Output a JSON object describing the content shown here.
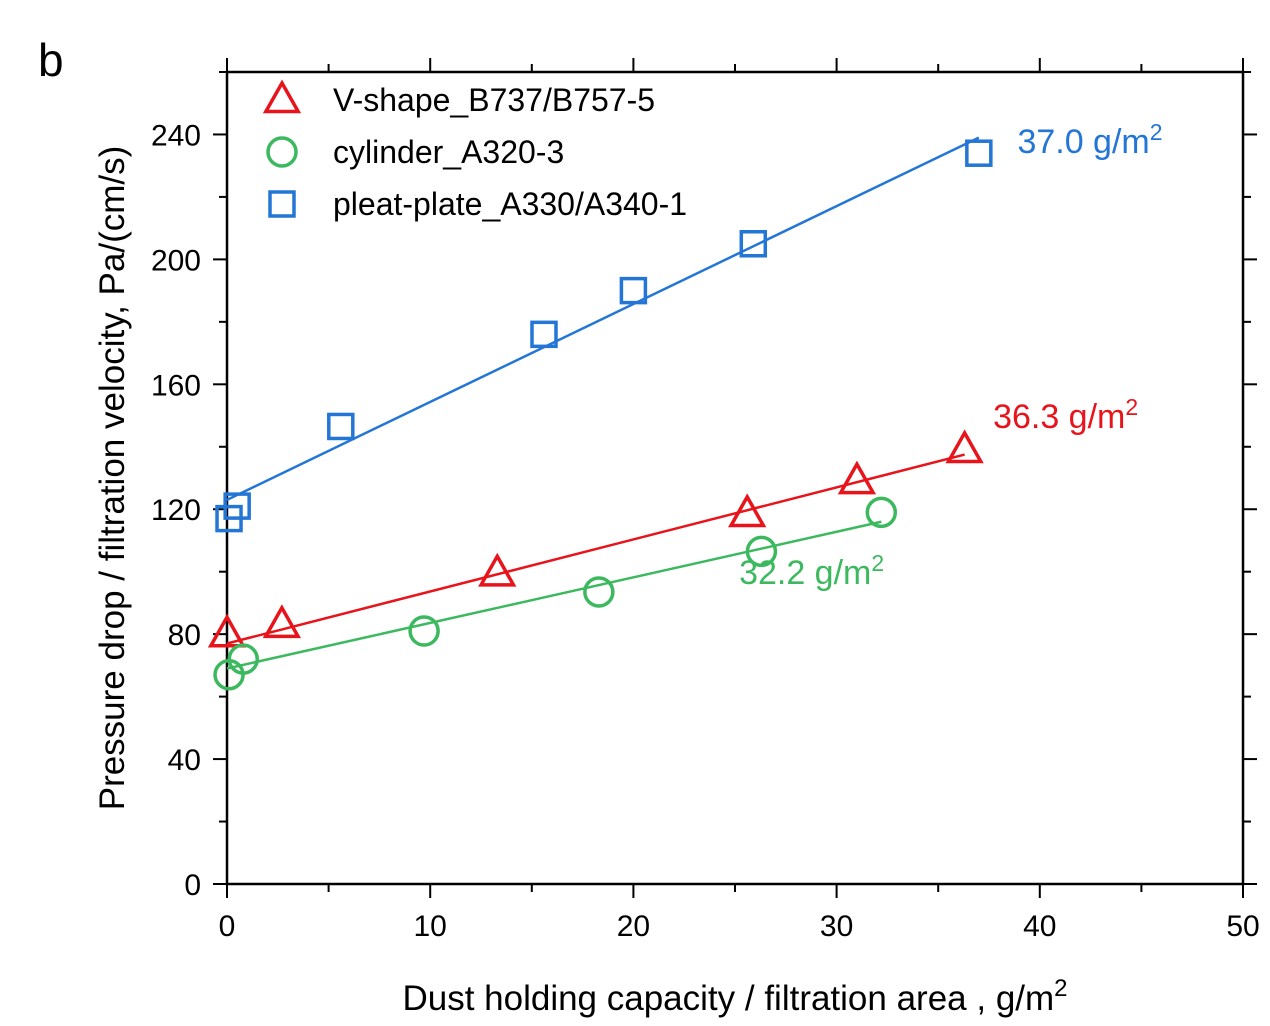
{
  "panel_label": "b",
  "chart_data": {
    "type": "scatter",
    "title": "",
    "xlabel": "Dust holding capacity / filtration area , g/m",
    "xlabel_sup": "2",
    "ylabel": "Pressure drop / filtration velocity, Pa/(cm/s)",
    "xlim": [
      0,
      50
    ],
    "ylim": [
      0,
      260
    ],
    "x_ticks": [
      0,
      10,
      20,
      30,
      40,
      50
    ],
    "y_ticks": [
      0,
      40,
      80,
      120,
      160,
      200,
      240
    ],
    "x_tick_labels": [
      "0",
      "10",
      "20",
      "30",
      "40",
      "50"
    ],
    "y_tick_labels": [
      "0",
      "40",
      "80",
      "120",
      "160",
      "200",
      "240"
    ],
    "x_minor_step": 5,
    "y_minor_step": 20,
    "grid": false,
    "legend_position": "top-left",
    "series": [
      {
        "name": "V-shape_B737/B757-5",
        "marker": "triangle",
        "color": "#e8141b",
        "points": [
          [
            0,
            80
          ],
          [
            2.7,
            83
          ],
          [
            13.3,
            99.5
          ],
          [
            25.6,
            118.5
          ],
          [
            31,
            129
          ],
          [
            36.3,
            139
          ]
        ],
        "fit": [
          [
            0,
            77
          ],
          [
            36.3,
            137.5
          ]
        ],
        "annotation": {
          "text": "36.3 g/m",
          "sup": "2",
          "at": [
            37.7,
            146
          ]
        }
      },
      {
        "name": "cylinder_A320-3",
        "marker": "circle",
        "color": "#3cb95e",
        "points": [
          [
            0.1,
            67
          ],
          [
            0.8,
            72
          ],
          [
            9.7,
            81
          ],
          [
            18.3,
            93.5
          ],
          [
            26.3,
            106.5
          ],
          [
            32.2,
            119
          ]
        ],
        "fit": [
          [
            0,
            69
          ],
          [
            32.2,
            116
          ]
        ],
        "annotation": {
          "text": "32.2 g/m",
          "sup": "2",
          "at": [
            25.2,
            96
          ]
        }
      },
      {
        "name": "pleat-plate_A330/A340-1",
        "marker": "square",
        "color": "#2376d6",
        "points": [
          [
            0.1,
            117
          ],
          [
            0.5,
            121
          ],
          [
            5.6,
            146.5
          ],
          [
            15.6,
            176
          ],
          [
            20,
            190
          ],
          [
            25.9,
            205
          ],
          [
            37,
            234
          ]
        ],
        "fit": [
          [
            0,
            123
          ],
          [
            37,
            239
          ]
        ],
        "annotation": {
          "text": "37.0 g/m",
          "sup": "2",
          "at": [
            38.9,
            234
          ]
        }
      }
    ]
  }
}
